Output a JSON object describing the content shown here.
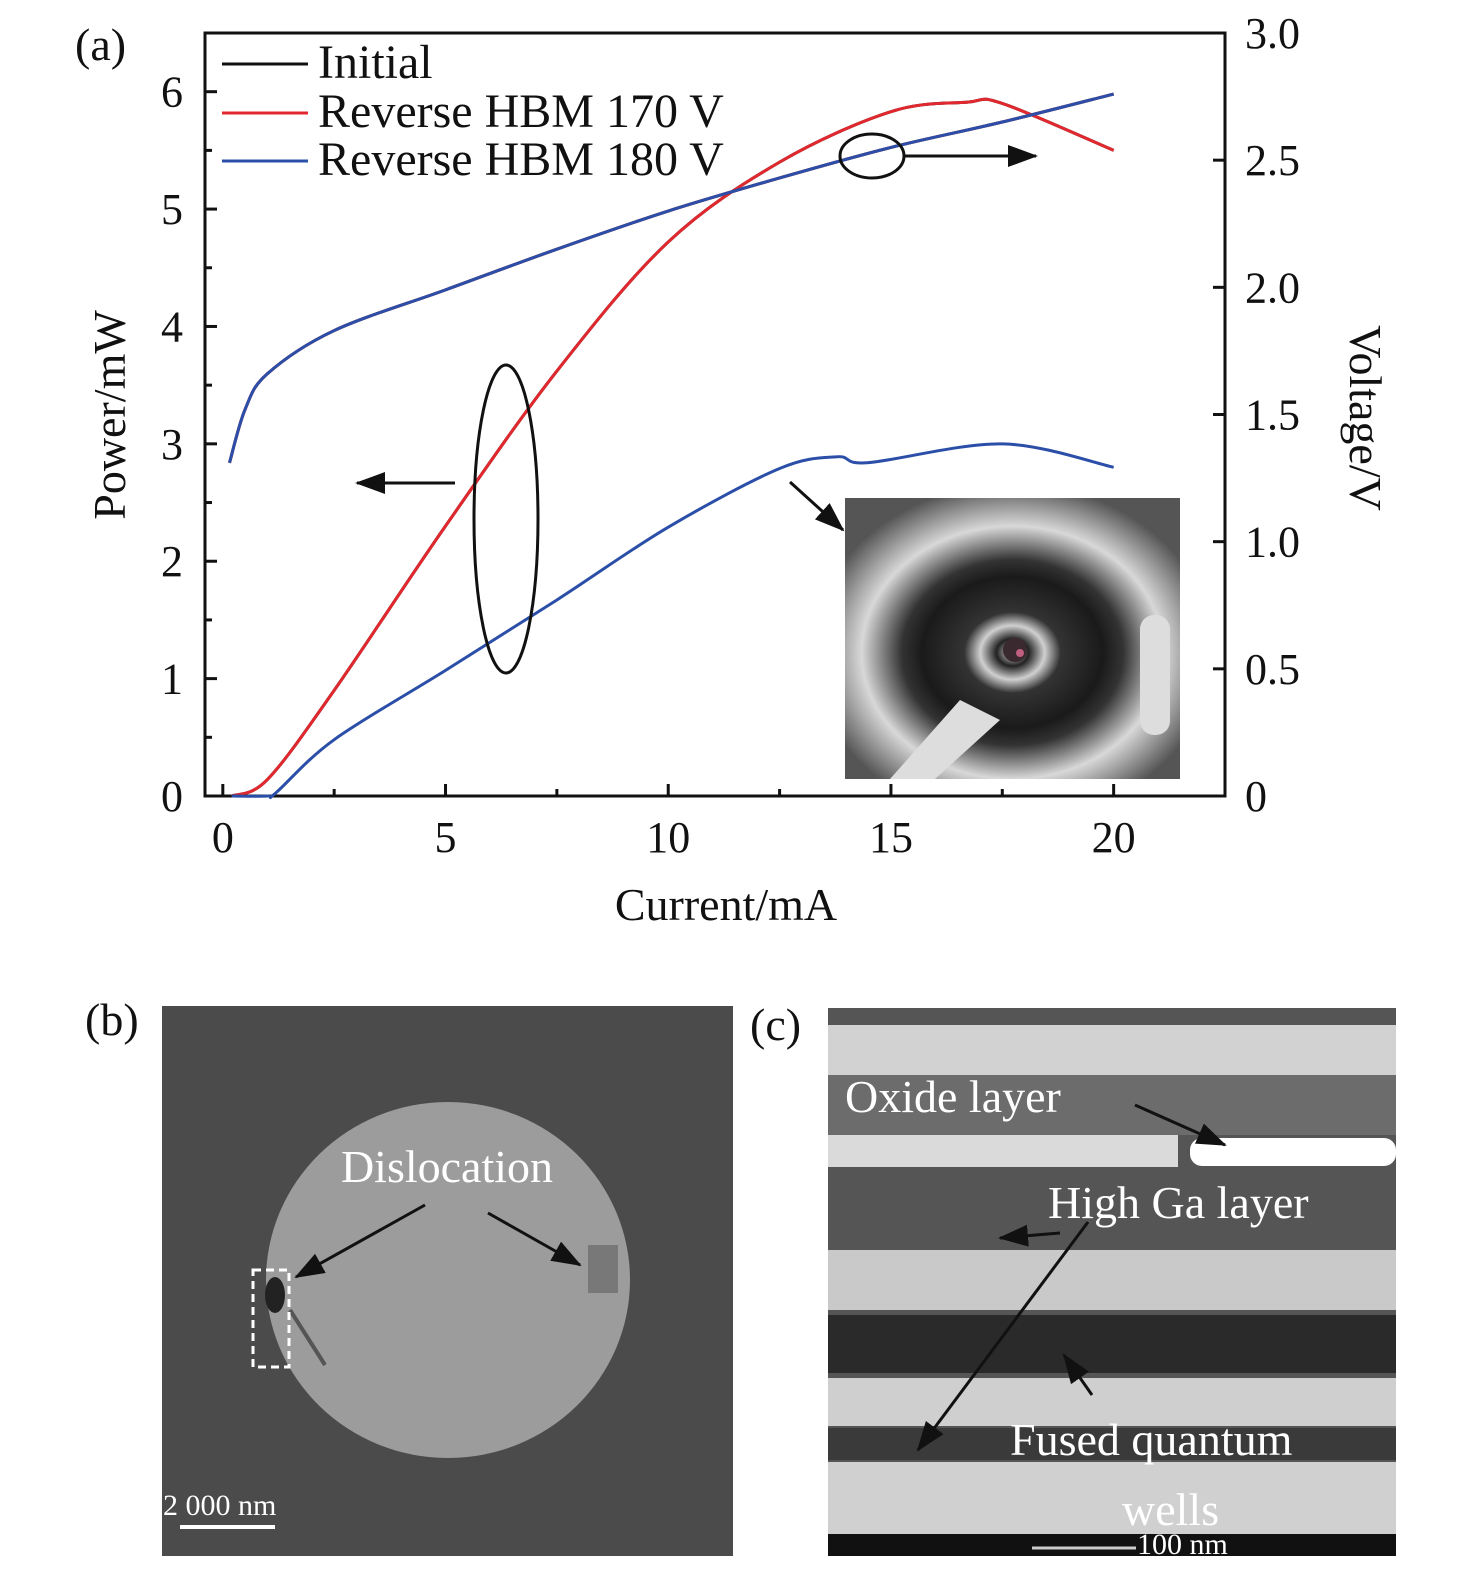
{
  "panels": {
    "a": "(a)",
    "b": "(b)",
    "c": "(c)"
  },
  "chart_data": {
    "type": "line",
    "xlabel": "Current/mA",
    "ylabel": "Power/mW",
    "y2label": "Voltage/V",
    "xlim": [
      -0.4,
      22.5
    ],
    "ylim": [
      0,
      6.5
    ],
    "y2lim": [
      0,
      3.0
    ],
    "xticks": [
      "0",
      "5",
      "10",
      "15",
      "20"
    ],
    "yticks": [
      "0",
      "1",
      "2",
      "3",
      "4",
      "5",
      "6"
    ],
    "y2ticks": [
      "0",
      "0.5",
      "1.0",
      "1.5",
      "2.0",
      "2.5",
      "3.0"
    ],
    "grid": false,
    "legend_position": "top-left",
    "series": [
      {
        "name": "Initial",
        "color": "#111111",
        "axis": "power",
        "x": [
          0.2,
          1,
          2.5,
          5,
          7.5,
          10,
          12.5,
          15,
          16.7,
          17.5,
          20
        ],
        "y": [
          0,
          0.14,
          0.9,
          2.3,
          3.62,
          4.72,
          5.4,
          5.83,
          5.91,
          5.9,
          5.5
        ]
      },
      {
        "name": "Initial",
        "color": "#111111",
        "axis": "voltage",
        "x": [
          0.15,
          0.5,
          1,
          2.5,
          5,
          7.5,
          10,
          12.5,
          15,
          17.5,
          20
        ],
        "y": [
          1.31,
          1.52,
          1.66,
          1.83,
          1.99,
          2.15,
          2.3,
          2.43,
          2.55,
          2.65,
          2.76
        ]
      },
      {
        "name": "Reverse HBM 170 V",
        "color": "#e0282e",
        "axis": "power",
        "x": [
          0.2,
          1,
          2.5,
          5,
          7.5,
          10,
          12.5,
          15,
          16.7,
          17.5,
          20
        ],
        "y": [
          0,
          0.14,
          0.9,
          2.3,
          3.62,
          4.72,
          5.4,
          5.83,
          5.91,
          5.9,
          5.5
        ]
      },
      {
        "name": "Reverse HBM 170 V",
        "color": "#e0282e",
        "axis": "voltage",
        "x": [
          0.15,
          0.5,
          1,
          2.5,
          5,
          7.5,
          10,
          12.5,
          15,
          17.5,
          20
        ],
        "y": [
          1.31,
          1.52,
          1.66,
          1.83,
          1.99,
          2.15,
          2.3,
          2.43,
          2.55,
          2.65,
          2.76
        ]
      },
      {
        "name": "Reverse HBM 180 V",
        "color": "#2b4fa8",
        "axis": "power",
        "x": [
          0.2,
          1,
          1.2,
          2.5,
          5,
          7.5,
          10,
          12.5,
          13.8,
          14.5,
          17.5,
          20
        ],
        "y": [
          0,
          0,
          0.03,
          0.48,
          1.07,
          1.67,
          2.29,
          2.79,
          2.89,
          2.84,
          3.0,
          2.8
        ]
      },
      {
        "name": "Reverse HBM 180 V",
        "color": "#2b4fa8",
        "axis": "voltage",
        "x": [
          0.15,
          0.5,
          1,
          2.5,
          5,
          7.5,
          10,
          12.5,
          15,
          17.5,
          20
        ],
        "y": [
          1.31,
          1.52,
          1.66,
          1.83,
          1.99,
          2.15,
          2.3,
          2.43,
          2.55,
          2.65,
          2.76
        ]
      }
    ]
  },
  "panel_b": {
    "label": "Dislocation",
    "scale_bar": "2 000 nm"
  },
  "panel_c": {
    "oxide": "Oxide layer",
    "high_ga": "High Ga layer",
    "fused1": "Fused quantum",
    "fused2": "wells",
    "scale_bar": "100 nm"
  }
}
